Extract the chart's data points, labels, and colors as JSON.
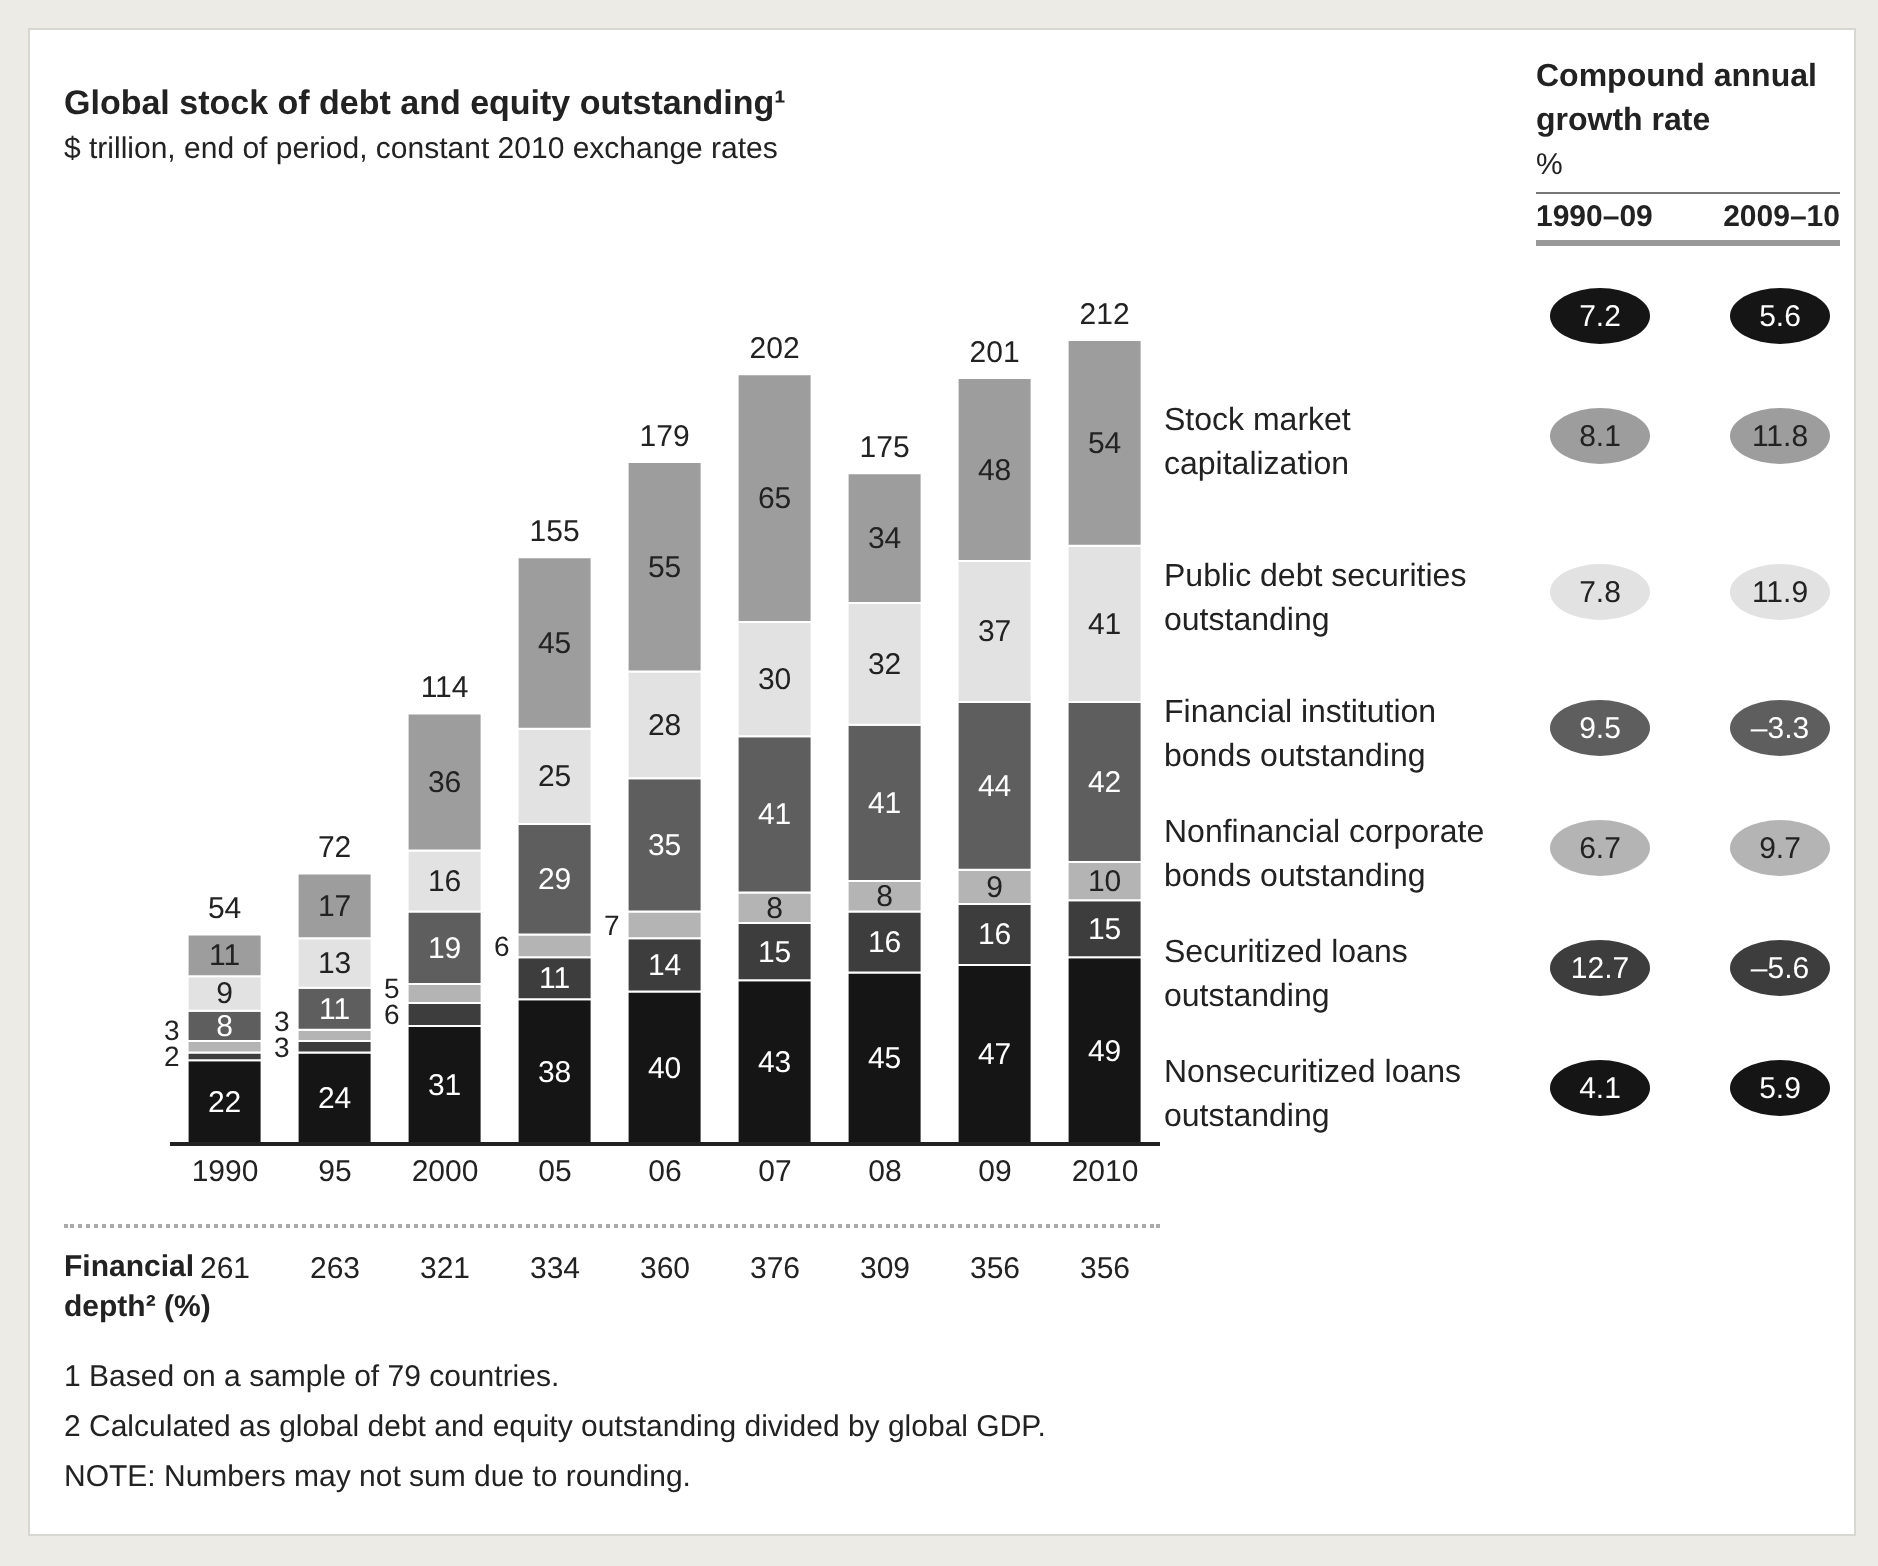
{
  "chart_data": {
    "type": "bar",
    "stacked": true,
    "title": "Global stock of debt and equity outstanding¹",
    "subtitle": "$ trillion, end of period, constant 2010 exchange rates",
    "categories": [
      "1990",
      "95",
      "2000",
      "05",
      "06",
      "07",
      "08",
      "09",
      "2010"
    ],
    "series": [
      {
        "name": "Nonsecuritized loans outstanding",
        "color": "#151515",
        "values": [
          22,
          24,
          31,
          38,
          40,
          43,
          45,
          47,
          49
        ]
      },
      {
        "name": "Securitized loans outstanding",
        "color": "#3d3d3d",
        "values": [
          2,
          3,
          6,
          11,
          14,
          15,
          16,
          16,
          15
        ]
      },
      {
        "name": "Nonfinancial corporate bonds outstanding",
        "color": "#b4b4b4",
        "values": [
          3,
          3,
          5,
          6,
          7,
          8,
          8,
          9,
          10
        ]
      },
      {
        "name": "Financial institution bonds outstanding",
        "color": "#5e5e5e",
        "values": [
          8,
          11,
          19,
          29,
          35,
          41,
          41,
          44,
          42
        ]
      },
      {
        "name": "Public debt securities outstanding",
        "color": "#e2e2e2",
        "values": [
          9,
          13,
          16,
          25,
          28,
          30,
          32,
          37,
          41
        ]
      },
      {
        "name": "Stock market capitalization",
        "color": "#9d9d9d",
        "values": [
          11,
          17,
          36,
          45,
          55,
          65,
          34,
          48,
          54
        ]
      }
    ],
    "totals": [
      "54",
      "72",
      "114",
      "155",
      "179",
      "202",
      "175",
      "201",
      "212"
    ],
    "data_labels": true,
    "legend": "right",
    "tick_labels": "x",
    "annotations": [
      "Compound annual growth rate",
      "%",
      "1990–09",
      "2009–10",
      "7.2",
      "5.6",
      "8.1",
      "11.8",
      "7.8",
      "11.9",
      "9.5",
      "–3.3",
      "6.7",
      "9.7",
      "12.7",
      "–5.6",
      "4.1",
      "5.9",
      "Financial depth² (%)",
      "261",
      "263",
      "321",
      "334",
      "360",
      "376",
      "309",
      "356",
      "356",
      "1 Based on a sample of 79 countries.",
      "2 Calculated as global debt and equity outstanding divided by global GDP.",
      "NOTE: Numbers may not sum due to rounding."
    ]
  }
}
